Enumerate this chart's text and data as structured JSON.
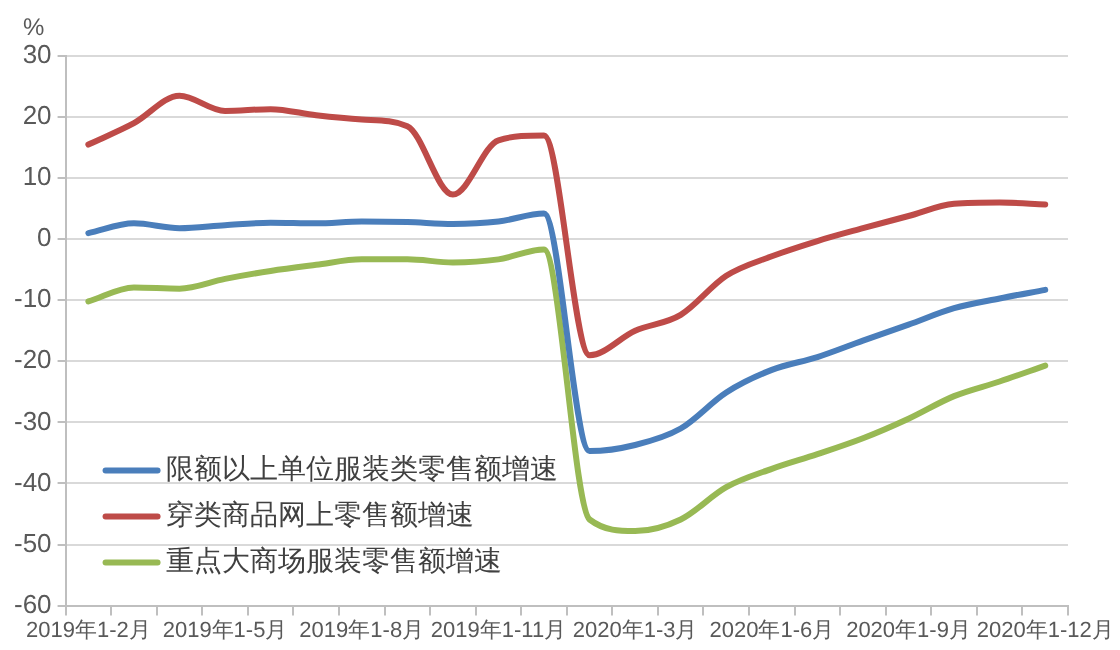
{
  "chart_data": {
    "type": "line",
    "ylabel": "%",
    "categories": [
      "2019年1-2月",
      null,
      null,
      "2019年1-5月",
      null,
      null,
      "2019年1-8月",
      null,
      null,
      "2019年1-11月",
      null,
      null,
      "2020年1-3月",
      null,
      null,
      "2020年1-6月",
      null,
      null,
      "2020年1-9月",
      null,
      null,
      "2020年1-12月"
    ],
    "series": [
      {
        "name": "限额以上单位服装类零售额增速",
        "color": "#4a7ebb",
        "values": [
          1,
          2.6,
          1.8,
          2.3,
          2.7,
          2.6,
          2.9,
          2.8,
          2.5,
          2.9,
          4.2,
          -34.7,
          -33.7,
          -31,
          -25.1,
          -21.4,
          -19.3,
          -16.6,
          -14,
          -11.3,
          -9.7,
          -8.3
        ]
      },
      {
        "name": "穿类商品网上零售额增速",
        "color": "#be4b48",
        "values": [
          15.5,
          19,
          23.5,
          21,
          21.3,
          20.3,
          19.6,
          18.5,
          7.3,
          16.2,
          17,
          -19,
          -15,
          -12.4,
          -6,
          -2.8,
          -0.3,
          1.8,
          3.8,
          5.8,
          6,
          5.7
        ]
      },
      {
        "name": "重点大商场服装零售额增速",
        "color": "#98b954",
        "values": [
          -10.2,
          -7.9,
          -8.1,
          -6.5,
          -5.2,
          -4.2,
          -3.3,
          -3.3,
          -3.8,
          -3.3,
          -1.7,
          -45.9,
          -47.8,
          -45.9,
          -40.6,
          -37.6,
          -35.2,
          -32.6,
          -29.4,
          -25.7,
          -23.3,
          -20.7
        ]
      }
    ],
    "ylim": [
      -60,
      30
    ],
    "yticks": [
      -60,
      -50,
      -40,
      -30,
      -20,
      -10,
      0,
      10,
      20,
      30
    ],
    "grid": "y",
    "legend": "bottom left",
    "marker": "none",
    "line_style": "solid"
  }
}
